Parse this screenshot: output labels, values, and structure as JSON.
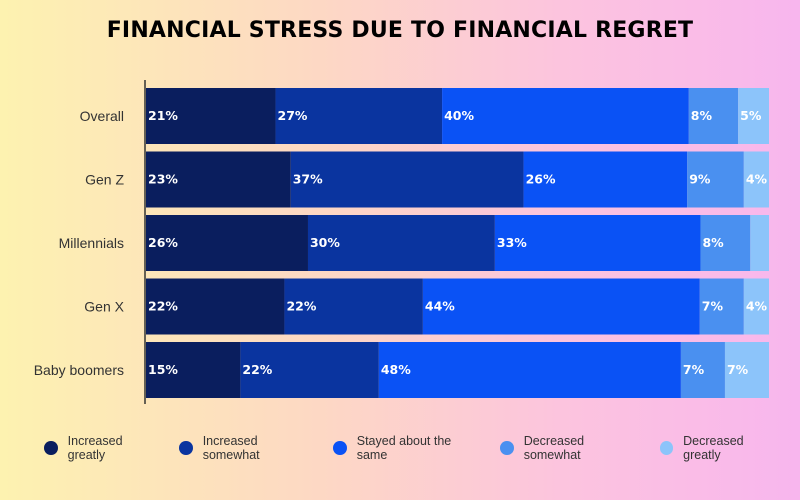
{
  "chart_data": {
    "type": "bar",
    "orientation": "horizontal",
    "stacked": true,
    "title": "FINANCIAL STRESS DUE TO FINANCIAL REGRET",
    "categories": [
      "Overall",
      "Gen Z",
      "Millennials",
      "Gen X",
      "Baby boomers"
    ],
    "series": [
      {
        "name": "Increased greatly",
        "color": "#0a1e5e",
        "values": [
          21,
          23,
          26,
          22,
          15
        ],
        "labels": [
          "21%",
          "23%",
          "26%",
          "22%",
          "15%"
        ]
      },
      {
        "name": "Increased somewhat",
        "color": "#0a349f",
        "values": [
          27,
          37,
          30,
          22,
          22
        ],
        "labels": [
          "27%",
          "37%",
          "30%",
          "22%",
          "22%"
        ]
      },
      {
        "name": "Stayed about the same",
        "color": "#0a52f5",
        "values": [
          40,
          26,
          33,
          44,
          48
        ],
        "labels": [
          "40%",
          "26%",
          "33%",
          "44%",
          "48%"
        ]
      },
      {
        "name": "Decreased somewhat",
        "color": "#4a90f0",
        "values": [
          8,
          9,
          8,
          7,
          7
        ],
        "labels": [
          "8%",
          "9%",
          "8%",
          "7%",
          "7%"
        ]
      },
      {
        "name": "Decreased greatly",
        "color": "#8cc4fa",
        "values": [
          5,
          4,
          3,
          4,
          7
        ],
        "labels": [
          "5%",
          "4%",
          "",
          "4%",
          "7%"
        ]
      }
    ],
    "xlim": [
      0,
      100
    ],
    "grid": false,
    "legend_position": "bottom"
  }
}
